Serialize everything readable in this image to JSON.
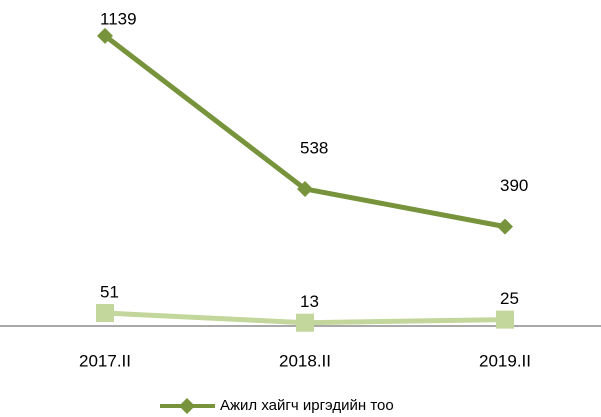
{
  "chart_data": {
    "type": "line",
    "categories": [
      "2017.II",
      "2018.II",
      "2019.II"
    ],
    "series": [
      {
        "name": "Ажил хайгч иргэдийн тоо",
        "color": "#77933c",
        "marker": "diamond",
        "values": [
          1139,
          538,
          390
        ]
      },
      {
        "color": "#c3d69b",
        "marker": "square",
        "values": [
          51,
          13,
          25
        ]
      }
    ],
    "ylim": [
      0,
      1260
    ],
    "legend": "bottom",
    "grid": false
  }
}
